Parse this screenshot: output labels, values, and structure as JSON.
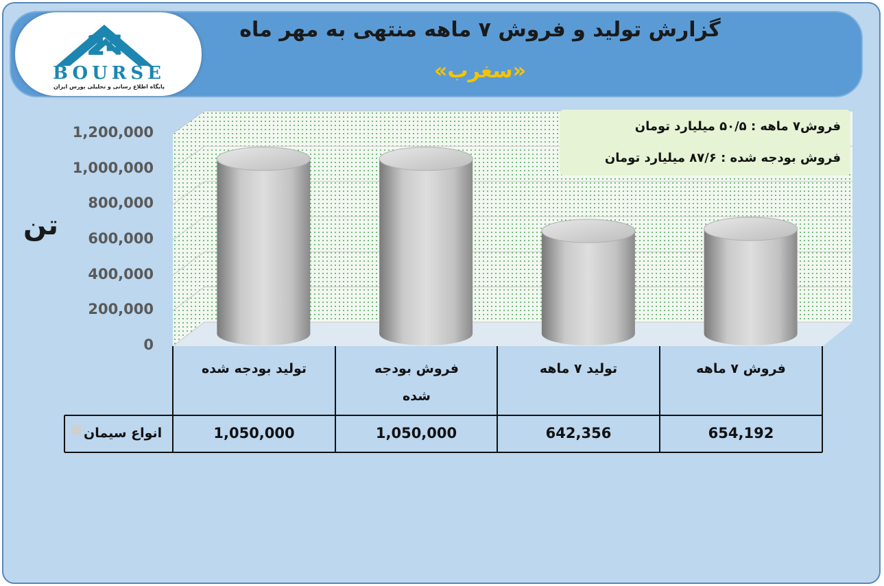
{
  "header": {
    "title": "گزارش تولید و فروش ۷ ماهه منتهی به مهر ماه",
    "subtitle": "«سغرب»"
  },
  "logo": {
    "text": "BOURSE",
    "subtitle": "پایگاه اطلاع رسانی و تحلیلی بورس ایران"
  },
  "info": {
    "line1": "فروش۷ ماهه : ۵۰/۵ میلیارد تومان",
    "line2": "فروش بودجه شده : ۸۷/۶ میلیارد تومان"
  },
  "chart_data": {
    "type": "bar",
    "style": "3d-cylinder",
    "ylabel": "تن",
    "ylim": [
      0,
      1200000
    ],
    "yticks": [
      "0",
      "200,000",
      "400,000",
      "600,000",
      "800,000",
      "1,000,000",
      "1,200,000"
    ],
    "categories": [
      "تولید بودجه شده",
      "فروش بودجه شده",
      "تولید ۷ ماهه",
      "فروش ۷ ماهه"
    ],
    "series": [
      {
        "name": "انواع سیمان",
        "values": [
          1050000,
          1050000,
          642356,
          654192
        ],
        "color": "#c8c8c8"
      }
    ],
    "value_labels": [
      "1,050,000",
      "1,050,000",
      "642,356",
      "654,192"
    ],
    "grid": true,
    "legend": "data-table"
  },
  "colors": {
    "frame": "#bcd7ee",
    "header": "#5b9bd5",
    "subtitle": "#f5c400",
    "logo_blue": "#1c86b0",
    "plot_bg": "#eef7ee"
  }
}
